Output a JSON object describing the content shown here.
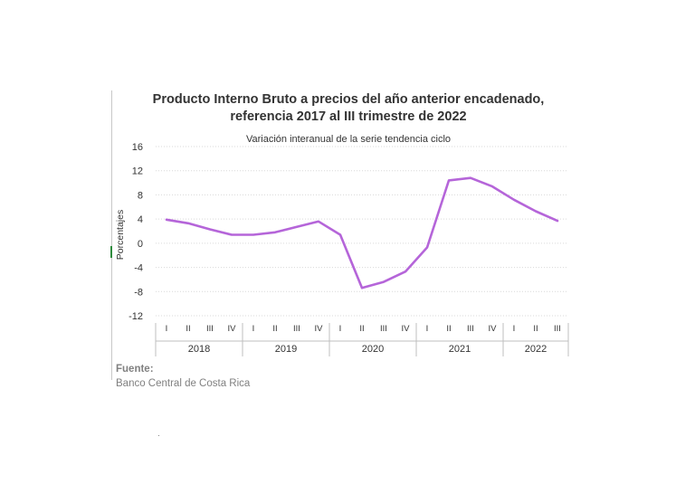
{
  "chart_data": {
    "type": "line",
    "title_lines": [
      "Producto Interno Bruto a precios del año anterior encadenado,",
      "referencia 2017 al III trimestre de 2022"
    ],
    "subtitle": "Variación interanual de la serie tendencia ciclo",
    "ylabel": "Porcentajes",
    "ylim": [
      -12,
      16
    ],
    "yticks": [
      16,
      12,
      8,
      4,
      0,
      -4,
      -8,
      -12
    ],
    "grid": true,
    "quarters": [
      "I",
      "II",
      "III",
      "IV",
      "I",
      "II",
      "III",
      "IV",
      "I",
      "II",
      "III",
      "IV",
      "I",
      "II",
      "III",
      "IV",
      "I",
      "II",
      "III"
    ],
    "years": [
      {
        "label": "2018",
        "quarters": 4
      },
      {
        "label": "2019",
        "quarters": 4
      },
      {
        "label": "2020",
        "quarters": 4
      },
      {
        "label": "2021",
        "quarters": 4
      },
      {
        "label": "2022",
        "quarters": 3
      }
    ],
    "series": [
      {
        "color": "#b565d9",
        "values": [
          3.9,
          3.3,
          2.3,
          1.4,
          1.4,
          1.8,
          2.7,
          3.6,
          1.4,
          -7.4,
          -6.4,
          -4.7,
          -0.7,
          10.4,
          10.8,
          9.4,
          7.2,
          5.3,
          3.7
        ]
      }
    ]
  },
  "source": {
    "label": "Fuente:",
    "text": "Banco Central de Costa Rica"
  }
}
